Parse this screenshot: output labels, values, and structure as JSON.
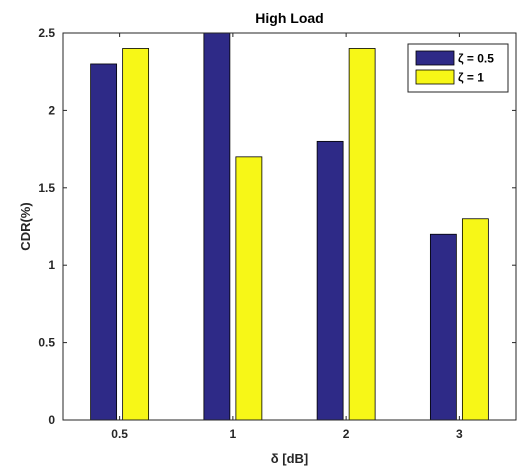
{
  "chart_data": {
    "type": "bar",
    "title": "High Load",
    "xlabel": "δ [dB]",
    "ylabel": "CDR(%)",
    "categories": [
      "0.5",
      "1",
      "2",
      "3"
    ],
    "ylim": [
      0,
      2.5
    ],
    "yticks": [
      "0",
      "0.5",
      "1",
      "1.5",
      "2",
      "2.5"
    ],
    "grid": false,
    "legend_position": "top-right",
    "series": [
      {
        "name": "ζ = 0.5",
        "color": "#2e2a87",
        "values": [
          2.3,
          2.5,
          1.8,
          1.2
        ]
      },
      {
        "name": "ζ = 1",
        "color": "#f7f717",
        "values": [
          2.4,
          1.7,
          2.4,
          1.3
        ]
      }
    ]
  }
}
